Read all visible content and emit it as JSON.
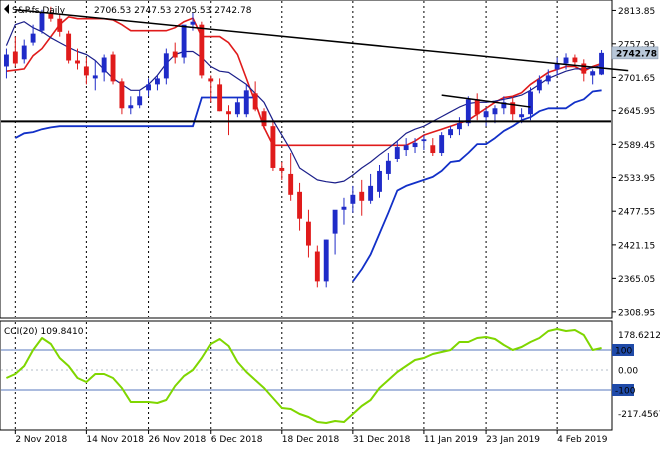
{
  "header": {
    "symbol": "S&P.fs,Daily",
    "ohlc": "2706.53 2747.53 2705.53 2742.78"
  },
  "colors": {
    "bull": "#1f2bc8",
    "bear": "#e01b1b",
    "upper_band": "#e01b1b",
    "mid_band": "#1b1f8a",
    "lower_band": "#1230c8",
    "cci": "#7fd600",
    "trendline": "#000000",
    "level": "#000000",
    "last_tag": "#b8c7d8",
    "cci_level_box": "#1f4aa8"
  },
  "chart_data": [
    {
      "type": "candlestick",
      "title": "S&P.fs,Daily",
      "ohlc_summary": [
        2706.53,
        2747.53,
        2705.53,
        2742.78
      ],
      "x": [
        "2018-11-01",
        "2018-11-02",
        "2018-11-05",
        "2018-11-06",
        "2018-11-07",
        "2018-11-08",
        "2018-11-09",
        "2018-11-12",
        "2018-11-13",
        "2018-11-14",
        "2018-11-15",
        "2018-11-16",
        "2018-11-19",
        "2018-11-20",
        "2018-11-21",
        "2018-11-23",
        "2018-11-26",
        "2018-11-27",
        "2018-11-28",
        "2018-11-29",
        "2018-11-30",
        "2018-12-03",
        "2018-12-04",
        "2018-12-06",
        "2018-12-07",
        "2018-12-10",
        "2018-12-11",
        "2018-12-12",
        "2018-12-13",
        "2018-12-14",
        "2018-12-17",
        "2018-12-18",
        "2018-12-19",
        "2018-12-20",
        "2018-12-21",
        "2018-12-24",
        "2018-12-26",
        "2018-12-27",
        "2018-12-28",
        "2018-12-31",
        "2019-01-02",
        "2019-01-03",
        "2019-01-04",
        "2019-01-07",
        "2019-01-08",
        "2019-01-09",
        "2019-01-10",
        "2019-01-11",
        "2019-01-14",
        "2019-01-15",
        "2019-01-16",
        "2019-01-17",
        "2019-01-18",
        "2019-01-22",
        "2019-01-23",
        "2019-01-24",
        "2019-01-25",
        "2019-01-28",
        "2019-01-29",
        "2019-01-30",
        "2019-01-31",
        "2019-02-01",
        "2019-02-04",
        "2019-02-05",
        "2019-02-06",
        "2019-02-07",
        "2019-02-08",
        "2019-02-11"
      ],
      "series": [
        {
          "name": "open",
          "values": [
            2720,
            2745,
            2732,
            2760,
            2780,
            2808,
            2800,
            2775,
            2730,
            2720,
            2700,
            2710,
            2740,
            2695,
            2650,
            2655,
            2680,
            2690,
            2700,
            2745,
            2735,
            2790,
            2790,
            2700,
            2690,
            2645,
            2640,
            2640,
            2675,
            2645,
            2620,
            2550,
            2540,
            2510,
            2460,
            2410,
            2360,
            2440,
            2480,
            2490,
            2510,
            2495,
            2510,
            2540,
            2565,
            2580,
            2585,
            2595,
            2588,
            2575,
            2605,
            2615,
            2625,
            2665,
            2635,
            2640,
            2650,
            2660,
            2635,
            2640,
            2680,
            2695,
            2715,
            2725,
            2735,
            2725,
            2705,
            2706.53
          ]
        },
        {
          "name": "high",
          "values": [
            2750,
            2770,
            2765,
            2790,
            2815,
            2820,
            2808,
            2780,
            2750,
            2735,
            2730,
            2740,
            2745,
            2700,
            2670,
            2680,
            2700,
            2705,
            2750,
            2760,
            2765,
            2810,
            2795,
            2705,
            2700,
            2655,
            2668,
            2690,
            2695,
            2650,
            2630,
            2560,
            2575,
            2525,
            2480,
            2420,
            2430,
            2470,
            2500,
            2520,
            2530,
            2540,
            2555,
            2575,
            2595,
            2600,
            2600,
            2605,
            2600,
            2610,
            2620,
            2635,
            2670,
            2675,
            2650,
            2655,
            2670,
            2670,
            2650,
            2685,
            2705,
            2715,
            2735,
            2742,
            2740,
            2732,
            2715,
            2747.53
          ]
        },
        {
          "name": "low",
          "values": [
            2700,
            2720,
            2725,
            2755,
            2775,
            2795,
            2770,
            2725,
            2715,
            2690,
            2680,
            2695,
            2690,
            2640,
            2640,
            2650,
            2670,
            2680,
            2690,
            2725,
            2725,
            2780,
            2700,
            2660,
            2645,
            2605,
            2635,
            2635,
            2645,
            2615,
            2545,
            2530,
            2495,
            2445,
            2400,
            2350,
            2350,
            2405,
            2455,
            2475,
            2470,
            2490,
            2500,
            2530,
            2560,
            2570,
            2575,
            2580,
            2570,
            2570,
            2600,
            2605,
            2620,
            2630,
            2620,
            2625,
            2640,
            2630,
            2625,
            2630,
            2675,
            2690,
            2705,
            2715,
            2720,
            2695,
            2690,
            2705.53
          ]
        },
        {
          "name": "close",
          "values": [
            2740,
            2725,
            2755,
            2775,
            2810,
            2800,
            2778,
            2730,
            2725,
            2705,
            2705,
            2735,
            2695,
            2650,
            2655,
            2670,
            2690,
            2700,
            2742,
            2735,
            2790,
            2795,
            2705,
            2695,
            2645,
            2640,
            2660,
            2680,
            2648,
            2620,
            2550,
            2545,
            2505,
            2465,
            2420,
            2360,
            2430,
            2480,
            2485,
            2505,
            2495,
            2520,
            2545,
            2562,
            2585,
            2588,
            2592,
            2598,
            2575,
            2605,
            2615,
            2625,
            2665,
            2640,
            2645,
            2650,
            2660,
            2640,
            2640,
            2678,
            2698,
            2705,
            2725,
            2735,
            2727,
            2708,
            2712,
            2742.78
          ]
        }
      ],
      "overlays": [
        {
          "name": "upper_band",
          "x_start": "2018-11-01",
          "x_end": "2019-02-11",
          "values": [
            2712,
            2714,
            2716,
            2738,
            2750,
            2770,
            2790,
            2803,
            2800,
            2800,
            2800,
            2800,
            2798,
            2790,
            2780,
            2780,
            2780,
            2780,
            2780,
            2785,
            2795,
            2801,
            2770,
            2770,
            2770,
            2760,
            2740,
            2700,
            2660,
            2618,
            2588,
            2588,
            2588,
            2588,
            2588,
            2588,
            2588,
            2588,
            2588,
            2588,
            2588,
            2588,
            2588,
            2588,
            2588,
            2588,
            2595,
            2605,
            2610,
            2615,
            2620,
            2625,
            2630,
            2640,
            2650,
            2660,
            2668,
            2670,
            2676,
            2690,
            2700,
            2710,
            2715,
            2720,
            2720,
            2712,
            2720,
            2725
          ]
        },
        {
          "name": "mid_band",
          "x_start": "2018-11-01",
          "x_end": "2019-02-11",
          "values": [
            2755,
            2790,
            2795,
            2785,
            2778,
            2768,
            2760,
            2752,
            2745,
            2740,
            2730,
            2715,
            2700,
            2690,
            2680,
            2680,
            2690,
            2705,
            2725,
            2740,
            2745,
            2745,
            2735,
            2720,
            2712,
            2710,
            2700,
            2690,
            2675,
            2660,
            2630,
            2605,
            2580,
            2550,
            2540,
            2530,
            2527,
            2525,
            2528,
            2538,
            2550,
            2560,
            2572,
            2583,
            2595,
            2608,
            2615,
            2620,
            2628,
            2636,
            2644,
            2652,
            2658,
            2660,
            2660,
            2662,
            2665,
            2668,
            2672,
            2680,
            2690,
            2700,
            2706,
            2712,
            2716,
            2716,
            2718,
            2722
          ]
        },
        {
          "name": "lower_band",
          "x_start": "2018-11-02",
          "x_end": "2019-02-11",
          "values": [
            2600,
            2608,
            2610,
            2615,
            2618,
            2620,
            2620,
            2620,
            2620,
            2620,
            2620,
            2620,
            2620,
            2620,
            2620,
            2620,
            2620,
            2620,
            2620,
            2620,
            2620,
            2668,
            2668,
            2668,
            2668,
            2668,
            2668,
            2668
          ]
        },
        {
          "name": "lower_band_2",
          "x_start": "2018-12-31",
          "x_end": "2019-02-11",
          "values": [
            2360,
            2380,
            2405,
            2440,
            2475,
            2512,
            2520,
            2525,
            2530,
            2535,
            2545,
            2560,
            2562,
            2575,
            2590,
            2590,
            2600,
            2612,
            2620,
            2630,
            2635,
            2645,
            2650,
            2650,
            2650,
            2660,
            2665,
            2678,
            2680
          ]
        },
        {
          "name": "trendline",
          "from": [
            "2018-11-02",
            2815
          ],
          "to": [
            "2019-02-14",
            2713
          ]
        },
        {
          "name": "trendline_2",
          "from": [
            "2019-01-15",
            2672
          ],
          "to": [
            "2019-01-30",
            2652
          ]
        },
        {
          "name": "horizontal_level",
          "value": 2628
        }
      ],
      "y_ticks": [
        "2813.85",
        "2757.95",
        "2701.65",
        "2645.95",
        "2589.45",
        "2533.95",
        "2477.55",
        "2421.15",
        "2365.05",
        "2308.95"
      ],
      "ylim": [
        2302,
        2828
      ],
      "x_ticks": [
        "2 Nov 2018",
        "14 Nov 2018",
        "26 Nov 2018",
        "6 Dec 2018",
        "18 Dec 2018",
        "31 Dec 2018",
        "11 Jan 2019",
        "23 Jan 2019",
        "4 Feb 2019"
      ],
      "x_tick_dates": [
        "2018-11-02",
        "2018-11-14",
        "2018-11-26",
        "2018-12-06",
        "2018-12-18",
        "2018-12-31",
        "2019-01-11",
        "2019-01-23",
        "2019-02-04"
      ],
      "last_price_label": "2742.78",
      "grid": "vertical dotted separators"
    },
    {
      "type": "line",
      "title": "CCI(20) 109.8410",
      "indicator_label": "CCI(20)",
      "indicator_value": "109.8410",
      "series": [
        {
          "name": "CCI(20)",
          "values": [
            -40,
            -20,
            20,
            100,
            160,
            130,
            60,
            20,
            -40,
            -60,
            -20,
            -20,
            -40,
            -90,
            -160,
            -160,
            -160,
            -165,
            -150,
            -80,
            -30,
            0,
            60,
            130,
            155,
            120,
            40,
            -10,
            -50,
            -90,
            -140,
            -190,
            -195,
            -220,
            -235,
            -260,
            -265,
            -255,
            -260,
            -220,
            -180,
            -150,
            -90,
            -50,
            -10,
            20,
            50,
            60,
            80,
            90,
            100,
            140,
            140,
            160,
            165,
            155,
            125,
            100,
            115,
            140,
            160,
            195,
            205,
            195,
            200,
            175,
            100,
            110
          ]
        }
      ],
      "y_ticks": [
        "178.6212",
        "100",
        "0.00",
        "-100",
        "-217.4567"
      ],
      "ylim": [
        -290,
        235
      ],
      "x_start": "2018-11-01",
      "x_end": "2019-02-11"
    }
  ]
}
